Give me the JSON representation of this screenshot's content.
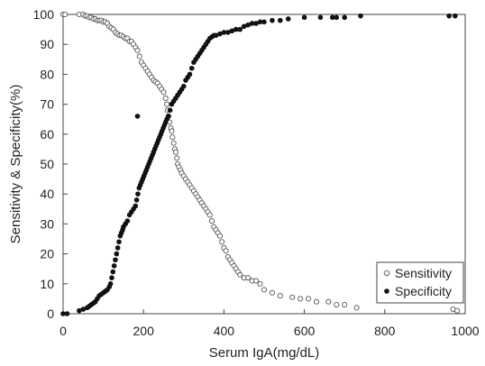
{
  "chart_data": {
    "type": "scatter",
    "xlabel": "Serum IgA(mg/dL)",
    "ylabel": "Sensitivity & Specificity(%)",
    "xlim": [
      0,
      1000
    ],
    "ylim": [
      0,
      100
    ],
    "xticks": [
      0,
      200,
      400,
      600,
      800,
      1000
    ],
    "yticks": [
      0,
      10,
      20,
      30,
      40,
      50,
      60,
      70,
      80,
      90,
      100
    ],
    "grid": false,
    "legend_position": "bottom-right",
    "series": [
      {
        "name": "Sensitivity",
        "marker": "open-circle",
        "color": "#555555",
        "points": [
          [
            0,
            100
          ],
          [
            5,
            100
          ],
          [
            40,
            100
          ],
          [
            50,
            100
          ],
          [
            55,
            99.5
          ],
          [
            60,
            99.5
          ],
          [
            65,
            99
          ],
          [
            70,
            99
          ],
          [
            75,
            98.5
          ],
          [
            80,
            98.5
          ],
          [
            85,
            98
          ],
          [
            90,
            98
          ],
          [
            95,
            98
          ],
          [
            100,
            97.5
          ],
          [
            105,
            97.5
          ],
          [
            110,
            97
          ],
          [
            115,
            96
          ],
          [
            120,
            95.5
          ],
          [
            125,
            95
          ],
          [
            130,
            94
          ],
          [
            135,
            93.5
          ],
          [
            140,
            93
          ],
          [
            145,
            93
          ],
          [
            150,
            92.5
          ],
          [
            155,
            92
          ],
          [
            160,
            92
          ],
          [
            165,
            91
          ],
          [
            170,
            91
          ],
          [
            175,
            90
          ],
          [
            180,
            89
          ],
          [
            185,
            88
          ],
          [
            190,
            86
          ],
          [
            195,
            84
          ],
          [
            200,
            83
          ],
          [
            205,
            82
          ],
          [
            210,
            81
          ],
          [
            215,
            80
          ],
          [
            220,
            79
          ],
          [
            225,
            78
          ],
          [
            230,
            77.5
          ],
          [
            235,
            77
          ],
          [
            240,
            76
          ],
          [
            245,
            75
          ],
          [
            250,
            74
          ],
          [
            255,
            72
          ],
          [
            258,
            70
          ],
          [
            260,
            68
          ],
          [
            262,
            66
          ],
          [
            265,
            64
          ],
          [
            268,
            62
          ],
          [
            270,
            61
          ],
          [
            272,
            59
          ],
          [
            275,
            57
          ],
          [
            278,
            55
          ],
          [
            280,
            54
          ],
          [
            283,
            52
          ],
          [
            285,
            50
          ],
          [
            288,
            49
          ],
          [
            292,
            48
          ],
          [
            295,
            47
          ],
          [
            300,
            46
          ],
          [
            305,
            45
          ],
          [
            310,
            44
          ],
          [
            315,
            43
          ],
          [
            320,
            42
          ],
          [
            325,
            41
          ],
          [
            330,
            40
          ],
          [
            335,
            39
          ],
          [
            340,
            38
          ],
          [
            345,
            37
          ],
          [
            350,
            36
          ],
          [
            355,
            35
          ],
          [
            360,
            34
          ],
          [
            365,
            33
          ],
          [
            370,
            31
          ],
          [
            375,
            29
          ],
          [
            380,
            28
          ],
          [
            385,
            27
          ],
          [
            390,
            26
          ],
          [
            395,
            24
          ],
          [
            400,
            22
          ],
          [
            405,
            21
          ],
          [
            410,
            19
          ],
          [
            415,
            18
          ],
          [
            420,
            17
          ],
          [
            425,
            16
          ],
          [
            430,
            15
          ],
          [
            435,
            14
          ],
          [
            440,
            13
          ],
          [
            450,
            12
          ],
          [
            460,
            12
          ],
          [
            470,
            11
          ],
          [
            480,
            11
          ],
          [
            490,
            10
          ],
          [
            500,
            8
          ],
          [
            520,
            7
          ],
          [
            540,
            6
          ],
          [
            570,
            5.5
          ],
          [
            590,
            5
          ],
          [
            610,
            5
          ],
          [
            630,
            4
          ],
          [
            660,
            4
          ],
          [
            680,
            3
          ],
          [
            700,
            3
          ],
          [
            730,
            2
          ],
          [
            970,
            1.5
          ],
          [
            980,
            1
          ]
        ]
      },
      {
        "name": "Specificity",
        "marker": "filled-circle",
        "color": "#111111",
        "points": [
          [
            0,
            0
          ],
          [
            10,
            0
          ],
          [
            40,
            1
          ],
          [
            50,
            1.5
          ],
          [
            60,
            2
          ],
          [
            65,
            2.5
          ],
          [
            70,
            3
          ],
          [
            75,
            3.5
          ],
          [
            80,
            4
          ],
          [
            85,
            5
          ],
          [
            90,
            6
          ],
          [
            95,
            6.5
          ],
          [
            100,
            7
          ],
          [
            105,
            7.5
          ],
          [
            110,
            8
          ],
          [
            115,
            9
          ],
          [
            118,
            10
          ],
          [
            121,
            12
          ],
          [
            124,
            14
          ],
          [
            127,
            16
          ],
          [
            130,
            18
          ],
          [
            133,
            20
          ],
          [
            136,
            22
          ],
          [
            139,
            24
          ],
          [
            142,
            26
          ],
          [
            145,
            27
          ],
          [
            148,
            28
          ],
          [
            150,
            29
          ],
          [
            155,
            30
          ],
          [
            160,
            31
          ],
          [
            165,
            33
          ],
          [
            170,
            34
          ],
          [
            175,
            35
          ],
          [
            180,
            36
          ],
          [
            183,
            38
          ],
          [
            186,
            40
          ],
          [
            189,
            42
          ],
          [
            192,
            43
          ],
          [
            195,
            44
          ],
          [
            198,
            45
          ],
          [
            201,
            46
          ],
          [
            204,
            47
          ],
          [
            207,
            48
          ],
          [
            210,
            49
          ],
          [
            213,
            50
          ],
          [
            216,
            51
          ],
          [
            219,
            52
          ],
          [
            222,
            53
          ],
          [
            225,
            54
          ],
          [
            228,
            55
          ],
          [
            231,
            56
          ],
          [
            234,
            57
          ],
          [
            237,
            58
          ],
          [
            240,
            59
          ],
          [
            243,
            60
          ],
          [
            246,
            61
          ],
          [
            249,
            62
          ],
          [
            252,
            63
          ],
          [
            255,
            64
          ],
          [
            258,
            65
          ],
          [
            262,
            66
          ],
          [
            266,
            68
          ],
          [
            270,
            70
          ],
          [
            275,
            71
          ],
          [
            280,
            72
          ],
          [
            285,
            73
          ],
          [
            290,
            74
          ],
          [
            295,
            75
          ],
          [
            300,
            76
          ],
          [
            305,
            78
          ],
          [
            310,
            79
          ],
          [
            315,
            80
          ],
          [
            320,
            82
          ],
          [
            325,
            84
          ],
          [
            330,
            85
          ],
          [
            335,
            86
          ],
          [
            340,
            87
          ],
          [
            345,
            88
          ],
          [
            350,
            89
          ],
          [
            355,
            90
          ],
          [
            360,
            91
          ],
          [
            365,
            92
          ],
          [
            370,
            92.5
          ],
          [
            375,
            93
          ],
          [
            380,
            93
          ],
          [
            390,
            93.5
          ],
          [
            400,
            94
          ],
          [
            410,
            94
          ],
          [
            420,
            94.5
          ],
          [
            430,
            95
          ],
          [
            440,
            95
          ],
          [
            450,
            96
          ],
          [
            460,
            96.5
          ],
          [
            470,
            97
          ],
          [
            480,
            97
          ],
          [
            490,
            97.5
          ],
          [
            500,
            97.5
          ],
          [
            520,
            98
          ],
          [
            540,
            98
          ],
          [
            560,
            98.5
          ],
          [
            600,
            99
          ],
          [
            640,
            99
          ],
          [
            670,
            99
          ],
          [
            680,
            99
          ],
          [
            700,
            99
          ],
          [
            740,
            99.5
          ],
          [
            960,
            99.5
          ],
          [
            975,
            99.5
          ],
          [
            185,
            66
          ]
        ]
      }
    ]
  }
}
